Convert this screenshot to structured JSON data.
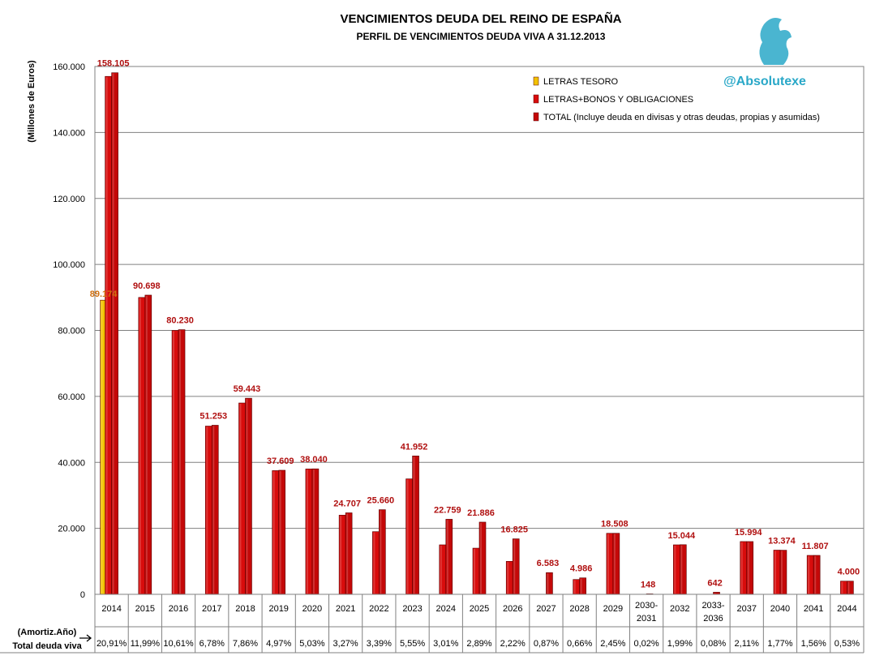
{
  "chart_data": {
    "type": "bar",
    "title": "VENCIMIENTOS DEUDA DEL REINO DE ESPAÑA",
    "subtitle": "PERFIL DE VENCIMIENTOS DEUDA VIVA A 31.12.2013",
    "ylabel": "(Millones de Euros)",
    "ylim": [
      0,
      160000
    ],
    "yticks": [
      "0",
      "20.000",
      "40.000",
      "60.000",
      "80.000",
      "100.000",
      "120.000",
      "140.000",
      "160.000"
    ],
    "grid": true,
    "legend_position": "top-right",
    "categories": [
      "2014",
      "2015",
      "2016",
      "2017",
      "2018",
      "2019",
      "2020",
      "2021",
      "2022",
      "2023",
      "2024",
      "2025",
      "2026",
      "2027",
      "2028",
      "2029",
      "2030-2031",
      "2032",
      "2033-2036",
      "2037",
      "2040",
      "2041",
      "2044"
    ],
    "series": [
      {
        "name": "LETRAS TESORO",
        "color": "#f0c000",
        "values": [
          89174,
          0,
          0,
          0,
          0,
          0,
          0,
          0,
          0,
          0,
          0,
          0,
          0,
          0,
          0,
          0,
          0,
          0,
          0,
          0,
          0,
          0,
          0
        ]
      },
      {
        "name": "LETRAS+BONOS Y OBLIGACIONES",
        "color": "#e01010",
        "values": [
          157000,
          90000,
          80000,
          51000,
          58000,
          37500,
          38000,
          24000,
          19000,
          35000,
          15000,
          14000,
          10000,
          0,
          4500,
          18500,
          0,
          15000,
          0,
          16000,
          13400,
          11800,
          4000
        ]
      },
      {
        "name": "TOTAL (Incluye deuda en divisas y otras deudas, propias y asumidas)",
        "color": "#c00808",
        "values": [
          158105,
          90698,
          80230,
          51253,
          59443,
          37609,
          38040,
          24707,
          25660,
          41952,
          22759,
          21886,
          16825,
          6583,
          4986,
          18508,
          148,
          15044,
          642,
          15994,
          13374,
          11807,
          4000
        ]
      }
    ],
    "data_labels": [
      "158.105",
      "90.698",
      "80.230",
      "51.253",
      "59.443",
      "37.609",
      "38.040",
      "24.707",
      "25.660",
      "41.952",
      "22.759",
      "21.886",
      "16.825",
      "6.583",
      "4.986",
      "18.508",
      "148",
      "15.044",
      "642",
      "15.994",
      "13.374",
      "11.807",
      "4.000"
    ],
    "letras_label": "89.174",
    "bottom_row": {
      "header1": "(Amortiz.Año)",
      "header2": "Total deuda viva",
      "percentages": [
        "20,91%",
        "11,99%",
        "10,61%",
        "6,78%",
        "7,86%",
        "4,97%",
        "5,03%",
        "3,27%",
        "3,39%",
        "5,55%",
        "3,01%",
        "2,89%",
        "2,22%",
        "0,87%",
        "0,66%",
        "2,45%",
        "0,02%",
        "1,99%",
        "0,08%",
        "2,11%",
        "1,77%",
        "1,56%",
        "0,53%"
      ]
    },
    "handle": "@Absolutexe"
  }
}
